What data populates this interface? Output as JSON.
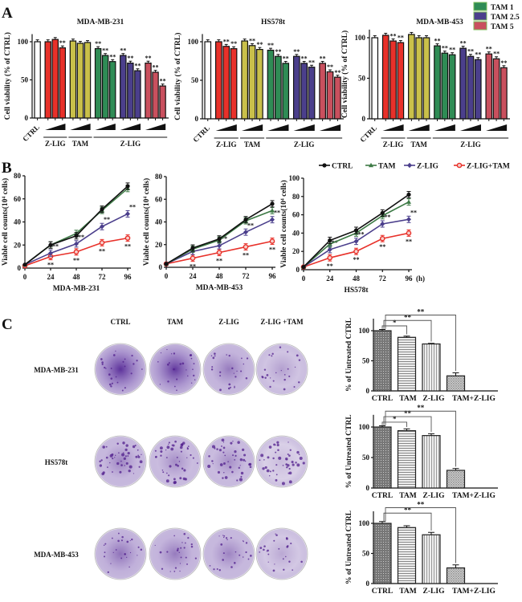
{
  "panels": [
    "A",
    "B",
    "C"
  ],
  "legend_a": [
    {
      "label": "TAM  1",
      "color": "#2f8c55"
    },
    {
      "label": "TAM 2.5",
      "color": "#4b3f8c"
    },
    {
      "label": "TAM  5",
      "color": "#c9505e"
    }
  ],
  "legend_b": [
    {
      "label": "CTRL",
      "color": "#111111",
      "marker": "circle"
    },
    {
      "label": "TAM",
      "color": "#3d7a45",
      "marker": "triangle"
    },
    {
      "label": "Z-LIG",
      "color": "#4b3f8c",
      "marker": "diamond"
    },
    {
      "label": "Z-LIG+TAM",
      "color": "#e8312a",
      "marker": "open-circle"
    }
  ],
  "colony": {
    "columns": [
      "CTRL",
      "TAM",
      "Z-LIG",
      "Z-LIG +TAM"
    ],
    "rows": [
      "MDA-MB-231",
      "HS578t",
      "MDA-MB-453"
    ]
  },
  "chart_data": [
    {
      "type": "bar",
      "title": "MDA-MB-231",
      "ylabel": "Cell viability (% of CTRL)",
      "ylim": [
        0,
        110
      ],
      "yticks": [
        0,
        50,
        100
      ],
      "groups": [
        {
          "label": "CTRL",
          "color": "#ffffff",
          "values": [
            100
          ],
          "sig": [
            ""
          ]
        },
        {
          "label": "Z-LIG",
          "color": "#e8312a",
          "values": [
            100,
            103,
            92
          ],
          "sig": [
            "",
            "",
            "**"
          ]
        },
        {
          "label": "TAM",
          "color": "#c9c04a",
          "values": [
            101,
            98,
            99
          ],
          "sig": [
            "",
            "",
            ""
          ]
        },
        {
          "label": "TAM 1",
          "color": "#2f8c55",
          "values": [
            91,
            82,
            74
          ],
          "sig": [
            "**",
            "**",
            "**"
          ]
        },
        {
          "label": "TAM 2.5",
          "color": "#4b3f8c",
          "values": [
            82,
            72,
            62
          ],
          "sig": [
            "**",
            "**",
            "**"
          ]
        },
        {
          "label": "TAM 5",
          "color": "#c9505e",
          "values": [
            72,
            60,
            42
          ],
          "sig": [
            "**",
            "**",
            "**"
          ]
        }
      ],
      "brackets": [
        {
          "label": "Z-LIG",
          "groups": [
            1
          ]
        },
        {
          "label": "TAM",
          "groups": [
            2
          ]
        },
        {
          "label": "Z-LIG",
          "groups": [
            3,
            4,
            5
          ]
        }
      ]
    },
    {
      "type": "bar",
      "title": "HS578t",
      "ylabel": "Cell viability (% of CTRL)",
      "ylim": [
        0,
        110
      ],
      "yticks": [
        0,
        50,
        100
      ],
      "groups": [
        {
          "label": "CTRL",
          "color": "#ffffff",
          "values": [
            100
          ],
          "sig": [
            ""
          ]
        },
        {
          "label": "Z-LIG",
          "color": "#e8312a",
          "values": [
            100,
            94,
            91
          ],
          "sig": [
            "",
            "**",
            "**"
          ]
        },
        {
          "label": "TAM",
          "color": "#c9c04a",
          "values": [
            101,
            95,
            90
          ],
          "sig": [
            "",
            "**",
            "**"
          ]
        },
        {
          "label": "TAM 1",
          "color": "#2f8c55",
          "values": [
            89,
            81,
            72
          ],
          "sig": [
            "**",
            "**",
            "**"
          ]
        },
        {
          "label": "TAM 2.5",
          "color": "#4b3f8c",
          "values": [
            81,
            72,
            67
          ],
          "sig": [
            "**",
            "**",
            "**"
          ]
        },
        {
          "label": "TAM 5",
          "color": "#c9505e",
          "values": [
            72,
            61,
            54
          ],
          "sig": [
            "**",
            "**",
            "**"
          ]
        }
      ],
      "brackets": [
        {
          "label": "Z-LIG",
          "groups": [
            1
          ]
        },
        {
          "label": "TAM",
          "groups": [
            2
          ]
        },
        {
          "label": "Z-LIG",
          "groups": [
            3,
            4,
            5
          ]
        }
      ]
    },
    {
      "type": "bar",
      "title": "MDA-MB-453",
      "ylabel": "Cell viability (% of CTRL)",
      "ylim": [
        0,
        110
      ],
      "yticks": [
        0,
        50,
        100
      ],
      "groups": [
        {
          "label": "CTRL",
          "color": "#ffffff",
          "values": [
            100
          ],
          "sig": [
            ""
          ]
        },
        {
          "label": "Z-LIG",
          "color": "#e8312a",
          "values": [
            103,
            96,
            94
          ],
          "sig": [
            "",
            "**",
            "**"
          ]
        },
        {
          "label": "TAM",
          "color": "#c9c04a",
          "values": [
            104,
            100,
            100
          ],
          "sig": [
            "",
            "",
            ""
          ]
        },
        {
          "label": "TAM 1",
          "color": "#2f8c55",
          "values": [
            90,
            81,
            79
          ],
          "sig": [
            "**",
            "**",
            "**"
          ]
        },
        {
          "label": "TAM 2.5",
          "color": "#4b3f8c",
          "values": [
            87,
            77,
            73
          ],
          "sig": [
            "**",
            "**",
            "**"
          ]
        },
        {
          "label": "TAM 5",
          "color": "#c9505e",
          "values": [
            80,
            74,
            63
          ],
          "sig": [
            "**",
            "**",
            "**"
          ]
        }
      ],
      "brackets": [
        {
          "label": "Z-LIG",
          "groups": [
            1
          ]
        },
        {
          "label": "TAM",
          "groups": [
            2
          ]
        },
        {
          "label": "Z-LIG",
          "groups": [
            3,
            4,
            5
          ]
        }
      ]
    },
    {
      "type": "line",
      "xlabel": "MDA-MB-231",
      "ylabel": "Viable cell counts(10⁴ cells)",
      "xunit": "",
      "x": [
        0,
        24,
        48,
        72,
        96
      ],
      "ylim": [
        0,
        80
      ],
      "yticks": [
        0,
        20,
        40,
        60,
        80
      ],
      "series": [
        {
          "name": "CTRL",
          "values": [
            3,
            20,
            28,
            51,
            71
          ],
          "sig": [
            "",
            "",
            "",
            "",
            ""
          ]
        },
        {
          "name": "TAM",
          "values": [
            3,
            20,
            30,
            50,
            69
          ],
          "sig": [
            "",
            "",
            "",
            "",
            ""
          ]
        },
        {
          "name": "Z-LIG",
          "values": [
            3,
            13,
            21,
            36,
            47
          ],
          "sig": [
            "",
            "**",
            "**",
            "**",
            "**"
          ]
        },
        {
          "name": "Z-LIG+TAM",
          "values": [
            2,
            10,
            14,
            22,
            26
          ],
          "sig": [
            "",
            "**",
            "**",
            "**",
            "**"
          ]
        }
      ]
    },
    {
      "type": "line",
      "xlabel": "MDA-MB-453",
      "ylabel": "Viable cell counts(10⁴ cells)",
      "xunit": "",
      "x": [
        0,
        24,
        48,
        72,
        96
      ],
      "ylim": [
        0,
        80
      ],
      "yticks": [
        0,
        20,
        40,
        60,
        80
      ],
      "series": [
        {
          "name": "CTRL",
          "values": [
            3,
            17,
            25,
            42,
            56
          ],
          "sig": [
            "",
            "",
            "",
            "",
            ""
          ]
        },
        {
          "name": "TAM",
          "values": [
            3,
            16,
            24,
            41,
            50
          ],
          "sig": [
            "",
            "",
            "",
            "",
            ""
          ]
        },
        {
          "name": "Z-LIG",
          "values": [
            3,
            14,
            19,
            31,
            42
          ],
          "sig": [
            "",
            "",
            "**",
            "**",
            "**"
          ]
        },
        {
          "name": "Z-LIG+TAM",
          "values": [
            3,
            8,
            13,
            18,
            23
          ],
          "sig": [
            "",
            "**",
            "**",
            "**",
            "**"
          ]
        }
      ]
    },
    {
      "type": "line",
      "xlabel": "HS578t",
      "ylabel": "Viable cell counts(10⁴ cells)",
      "xunit": "(h)",
      "x": [
        0,
        24,
        48,
        72,
        96
      ],
      "ylim": [
        0,
        100
      ],
      "yticks": [
        0,
        20,
        40,
        60,
        80,
        100
      ],
      "series": [
        {
          "name": "CTRL",
          "values": [
            3,
            32,
            43,
            62,
            82
          ],
          "sig": [
            "",
            "",
            "",
            "",
            ""
          ]
        },
        {
          "name": "TAM",
          "values": [
            3,
            28,
            40,
            59,
            74
          ],
          "sig": [
            "",
            "",
            "",
            "",
            ""
          ]
        },
        {
          "name": "Z-LIG",
          "values": [
            3,
            22,
            31,
            50,
            55
          ],
          "sig": [
            "",
            "**",
            "**",
            "**",
            "**"
          ]
        },
        {
          "name": "Z-LIG+TAM",
          "values": [
            3,
            13,
            20,
            34,
            40
          ],
          "sig": [
            "",
            "**",
            "**",
            "**",
            "**"
          ]
        }
      ]
    },
    {
      "type": "bar",
      "ylabel": "% of  Untreated CTRL",
      "ylim": [
        0,
        120
      ],
      "yticks": [
        0,
        50,
        100
      ],
      "categories": [
        "CTRL",
        "TAM",
        "Z-LIG",
        "TAM+Z-LIG"
      ],
      "values": [
        100,
        89,
        78,
        25
      ],
      "errors": [
        2,
        2,
        1,
        5
      ],
      "patterns": [
        "crosshatch",
        "horizontal-lines",
        "vertical-lines",
        "dots"
      ],
      "comparisons": [
        {
          "to": 1,
          "label": "*"
        },
        {
          "to": 2,
          "label": "**"
        },
        {
          "to": 3,
          "label": "**"
        }
      ]
    },
    {
      "type": "bar",
      "ylabel": "% of  Untreated CTRL",
      "ylim": [
        0,
        120
      ],
      "yticks": [
        0,
        50,
        100
      ],
      "categories": [
        "CTRL",
        "TAM",
        "Z-LIG",
        "TAM+Z-LIG"
      ],
      "values": [
        100,
        94,
        86,
        29
      ],
      "errors": [
        2,
        3,
        3,
        3
      ],
      "patterns": [
        "crosshatch",
        "horizontal-lines",
        "vertical-lines",
        "dots"
      ],
      "comparisons": [
        {
          "to": 1,
          "label": "*"
        },
        {
          "to": 2,
          "label": "**"
        },
        {
          "to": 3,
          "label": "**"
        }
      ]
    },
    {
      "type": "bar",
      "ylabel": "% of  Untreated CTRL",
      "ylim": [
        0,
        120
      ],
      "yticks": [
        0,
        50,
        100
      ],
      "categories": [
        "CTRL",
        "TAM",
        "Z-LIG",
        "TAM+Z-LIG"
      ],
      "values": [
        100,
        93,
        81,
        26
      ],
      "errors": [
        3,
        3,
        4,
        5
      ],
      "patterns": [
        "crosshatch",
        "horizontal-lines",
        "vertical-lines",
        "dots"
      ],
      "comparisons": [
        {
          "to": 2,
          "label": "**"
        },
        {
          "to": 3,
          "label": "**"
        }
      ]
    }
  ]
}
